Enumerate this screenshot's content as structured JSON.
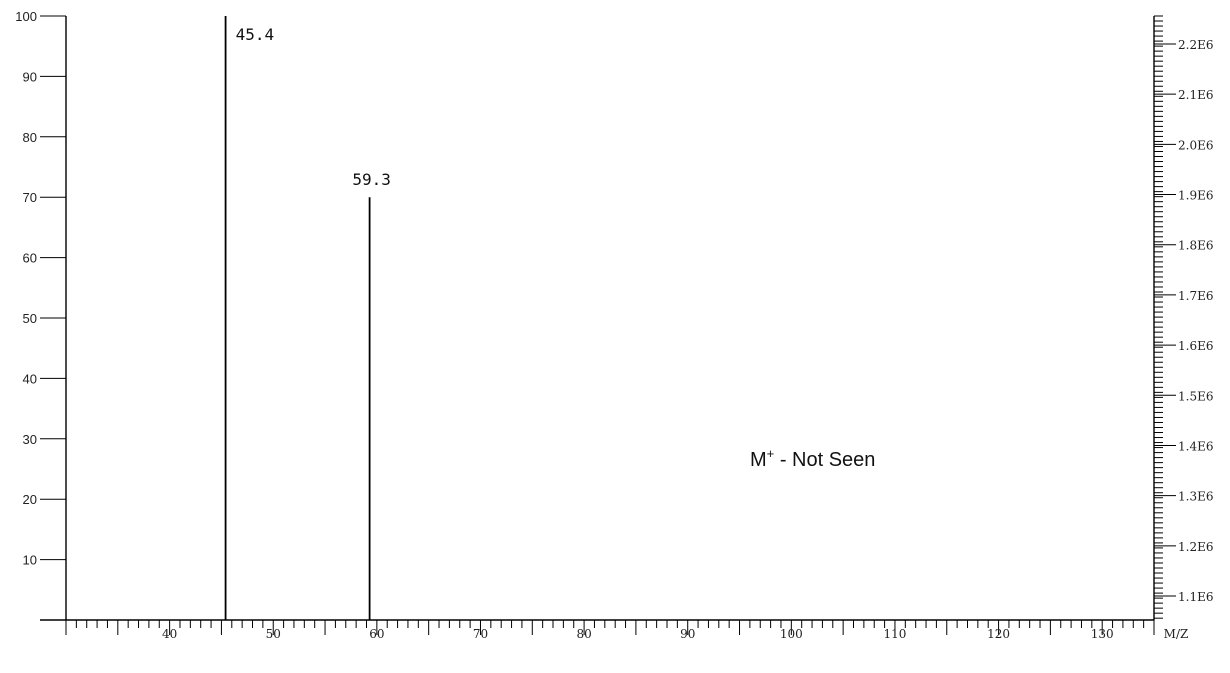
{
  "chart_data": {
    "type": "bar",
    "title": "",
    "xlabel": "M/Z",
    "ylabel": "",
    "xlim": [
      30,
      135
    ],
    "ylim": [
      0,
      100
    ],
    "x_ticks": [
      40,
      50,
      60,
      70,
      80,
      90,
      100,
      110,
      120,
      130
    ],
    "y_ticks": [
      10,
      20,
      30,
      40,
      50,
      60,
      70,
      80,
      90,
      100
    ],
    "right_axis": {
      "labels": [
        "1.1E6",
        "1.2E6",
        "1.3E6",
        "1.4E6",
        "1.5E6",
        "1.6E6",
        "1.7E6",
        "1.8E6",
        "1.9E6",
        "2.0E6",
        "2.1E6",
        "2.2E6"
      ]
    },
    "peaks": [
      {
        "x": 45.4,
        "y": 100,
        "label": "45.4"
      },
      {
        "x": 59.3,
        "y": 70,
        "label": "59.3"
      }
    ],
    "annotations": [
      "M+ - Not Seen"
    ],
    "grid": false,
    "legend": "none"
  }
}
